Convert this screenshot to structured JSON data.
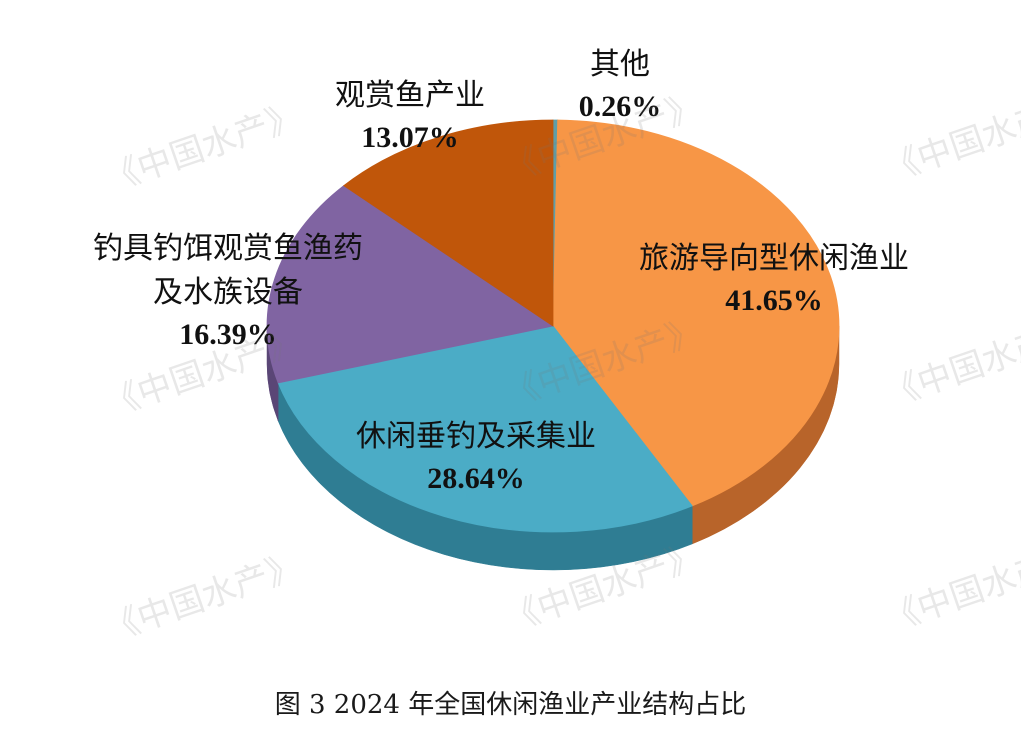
{
  "watermark": "《中国水产》",
  "caption": "图 3 2024 年全国休闲渔业产业结构占比",
  "chart_data": {
    "type": "pie",
    "title": "图 3 2024 年全国休闲渔业产业结构占比",
    "unit": "%",
    "slices": [
      {
        "name": "其他",
        "value": 0.26,
        "label": "0.26%",
        "color": "#5f9ea7",
        "side_color": "#3d6d74"
      },
      {
        "name": "旅游导向型休闲渔业",
        "value": 41.65,
        "label": "41.65%",
        "color": "#f79646",
        "side_color": "#b8642a"
      },
      {
        "name": "休闲垂钓及采集业",
        "value": 28.64,
        "label": "28.64%",
        "color": "#4bacc6",
        "side_color": "#2f7d93"
      },
      {
        "name": "钓具钓饵观赏鱼渔药及水族设备",
        "value": 16.39,
        "label": "16.39%",
        "color": "#8064a2",
        "side_color": "#5a4676"
      },
      {
        "name": "观赏鱼产业",
        "value": 13.07,
        "label": "13.07%",
        "color": "#c0560a",
        "side_color": "#8a3d08"
      }
    ],
    "slice_labels": [
      [
        "其他"
      ],
      [
        "旅游导向型休闲渔业"
      ],
      [
        "休闲垂钓及采集业"
      ],
      [
        "钓具钓饵观赏鱼渔药",
        "及水族设备"
      ],
      [
        "观赏鱼产业"
      ]
    ],
    "start_angle_deg": -90,
    "direction": "clockwise",
    "style": "3d-pie"
  }
}
